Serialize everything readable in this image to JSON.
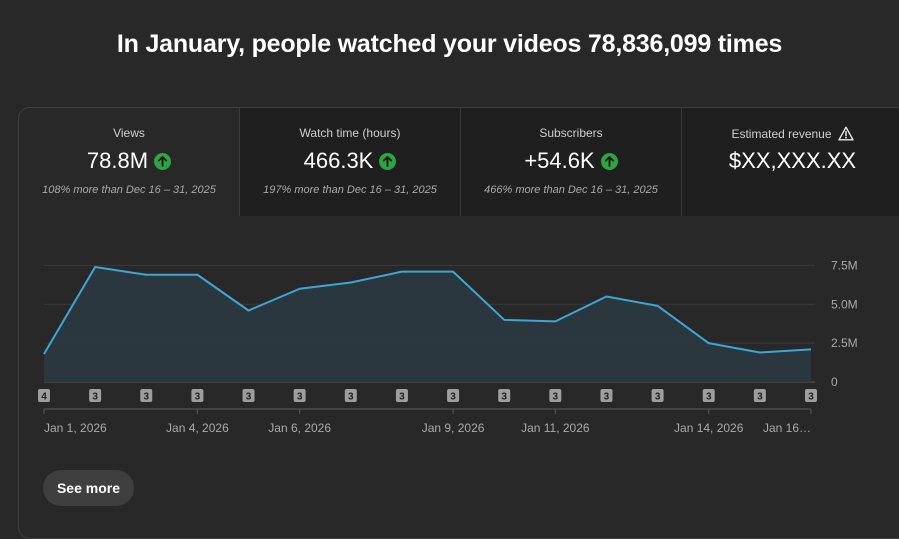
{
  "headline": "In January, people watched your videos 78,836,099 times",
  "metrics": [
    {
      "label": "Views",
      "value": "78.8M",
      "compare": "108% more than Dec 16 – 31, 2025",
      "trend": "up",
      "icon": "arrow-up-icon"
    },
    {
      "label": "Watch time (hours)",
      "value": "466.3K",
      "compare": "197% more than Dec 16 – 31, 2025",
      "trend": "up",
      "icon": "arrow-up-icon"
    },
    {
      "label": "Subscribers",
      "value": "+54.6K",
      "compare": "466% more than Dec 16 – 31, 2025",
      "trend": "up",
      "icon": "arrow-up-icon"
    },
    {
      "label": "Estimated revenue",
      "value": "$XX,XXX.XX",
      "icon": "warning-icon"
    }
  ],
  "colors": {
    "line": "#3ea6d6",
    "up_badge": "#2ba640",
    "background": "#282828"
  },
  "see_more_label": "See more",
  "chart_data": {
    "type": "area",
    "x": [
      "Jan 1, 2026",
      "Jan 2, 2026",
      "Jan 3, 2026",
      "Jan 4, 2026",
      "Jan 5, 2026",
      "Jan 6, 2026",
      "Jan 7, 2026",
      "Jan 8, 2026",
      "Jan 9, 2026",
      "Jan 10, 2026",
      "Jan 11, 2026",
      "Jan 12, 2026",
      "Jan 13, 2026",
      "Jan 14, 2026",
      "Jan 15, 2026",
      "Jan 16, 2026"
    ],
    "y": [
      1.8,
      7.4,
      6.9,
      6.9,
      4.6,
      6.0,
      6.4,
      7.1,
      7.1,
      4.0,
      3.9,
      5.5,
      4.9,
      2.5,
      1.9,
      2.1
    ],
    "y_unit": "M",
    "ylim": [
      0,
      8.75
    ],
    "yticks": [
      {
        "v": 0,
        "label": "0"
      },
      {
        "v": 2.5,
        "label": "2.5M"
      },
      {
        "v": 5.0,
        "label": "5.0M"
      },
      {
        "v": 7.5,
        "label": "7.5M"
      }
    ],
    "xtick_labels": [
      {
        "i": 0,
        "label": "Jan 1, 2026"
      },
      {
        "i": 3,
        "label": "Jan 4, 2026"
      },
      {
        "i": 5,
        "label": "Jan 6, 2026"
      },
      {
        "i": 8,
        "label": "Jan 9, 2026"
      },
      {
        "i": 10,
        "label": "Jan 11, 2026"
      },
      {
        "i": 13,
        "label": "Jan 14, 2026"
      },
      {
        "i": 15,
        "label": "Jan 16…"
      }
    ],
    "markers": [
      "4",
      "3",
      "3",
      "3",
      "3",
      "3",
      "3",
      "3",
      "3",
      "3",
      "3",
      "3",
      "3",
      "3",
      "3",
      "3"
    ],
    "grid": true
  }
}
